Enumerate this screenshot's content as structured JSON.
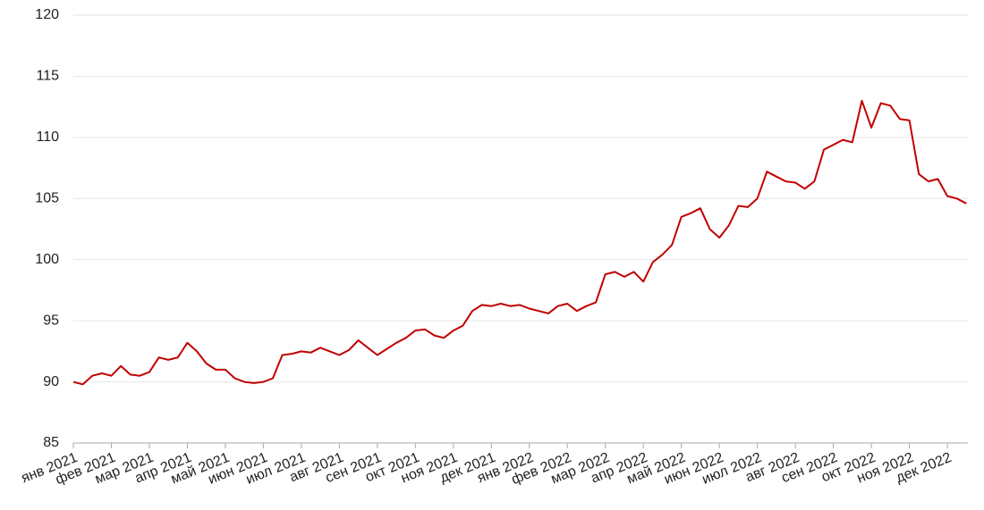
{
  "chart_data": {
    "type": "line",
    "categories": [
      "янв 2021",
      null,
      null,
      null,
      "фев 2021",
      null,
      null,
      null,
      "мар 2021",
      null,
      null,
      null,
      "апр 2021",
      null,
      null,
      null,
      "май 2021",
      null,
      null,
      null,
      "июн 2021",
      null,
      null,
      null,
      "июл 2021",
      null,
      null,
      null,
      "авг 2021",
      null,
      null,
      null,
      "сен 2021",
      null,
      null,
      null,
      "окт 2021",
      null,
      null,
      null,
      "ноя 2021",
      null,
      null,
      null,
      "дек 2021",
      null,
      null,
      null,
      "янв 2022",
      null,
      null,
      null,
      "фев 2022",
      null,
      null,
      null,
      "мар 2022",
      null,
      null,
      null,
      "апр 2022",
      null,
      null,
      null,
      "май 2022",
      null,
      null,
      null,
      "июн 2022",
      null,
      null,
      null,
      "июл 2022",
      null,
      null,
      null,
      "авг 2022",
      null,
      null,
      null,
      "сен 2022",
      null,
      null,
      null,
      "окт 2022",
      null,
      null,
      null,
      "ноя 2022",
      null,
      null,
      null,
      "дек 2022",
      null,
      null
    ],
    "values": [
      90.0,
      89.8,
      90.5,
      90.7,
      90.5,
      91.3,
      90.6,
      90.5,
      90.8,
      92.0,
      91.8,
      92.0,
      93.2,
      92.5,
      91.5,
      91.0,
      91.0,
      90.3,
      90.0,
      89.9,
      90.0,
      90.3,
      92.2,
      92.3,
      92.5,
      92.4,
      92.8,
      92.5,
      92.2,
      92.6,
      93.4,
      92.8,
      92.2,
      92.7,
      93.2,
      93.6,
      94.2,
      94.3,
      93.8,
      93.6,
      94.2,
      94.6,
      95.8,
      96.3,
      96.2,
      96.4,
      96.2,
      96.3,
      96.0,
      95.8,
      95.6,
      96.2,
      96.4,
      95.8,
      96.2,
      96.5,
      98.8,
      99.0,
      98.6,
      99.0,
      98.2,
      99.8,
      100.4,
      101.2,
      103.5,
      103.8,
      104.2,
      102.5,
      101.8,
      102.8,
      104.4,
      104.3,
      105.0,
      107.2,
      106.8,
      106.4,
      106.3,
      105.8,
      106.4,
      109.0,
      109.4,
      109.8,
      109.6,
      113.0,
      110.8,
      112.8,
      112.6,
      111.5,
      111.4,
      107.0,
      106.4,
      106.6,
      105.2,
      105.0,
      104.6
    ],
    "color": "#c00000",
    "ylim": [
      85,
      120
    ],
    "yticks": [
      85,
      90,
      95,
      100,
      105,
      110,
      115,
      120
    ],
    "grid": true
  }
}
